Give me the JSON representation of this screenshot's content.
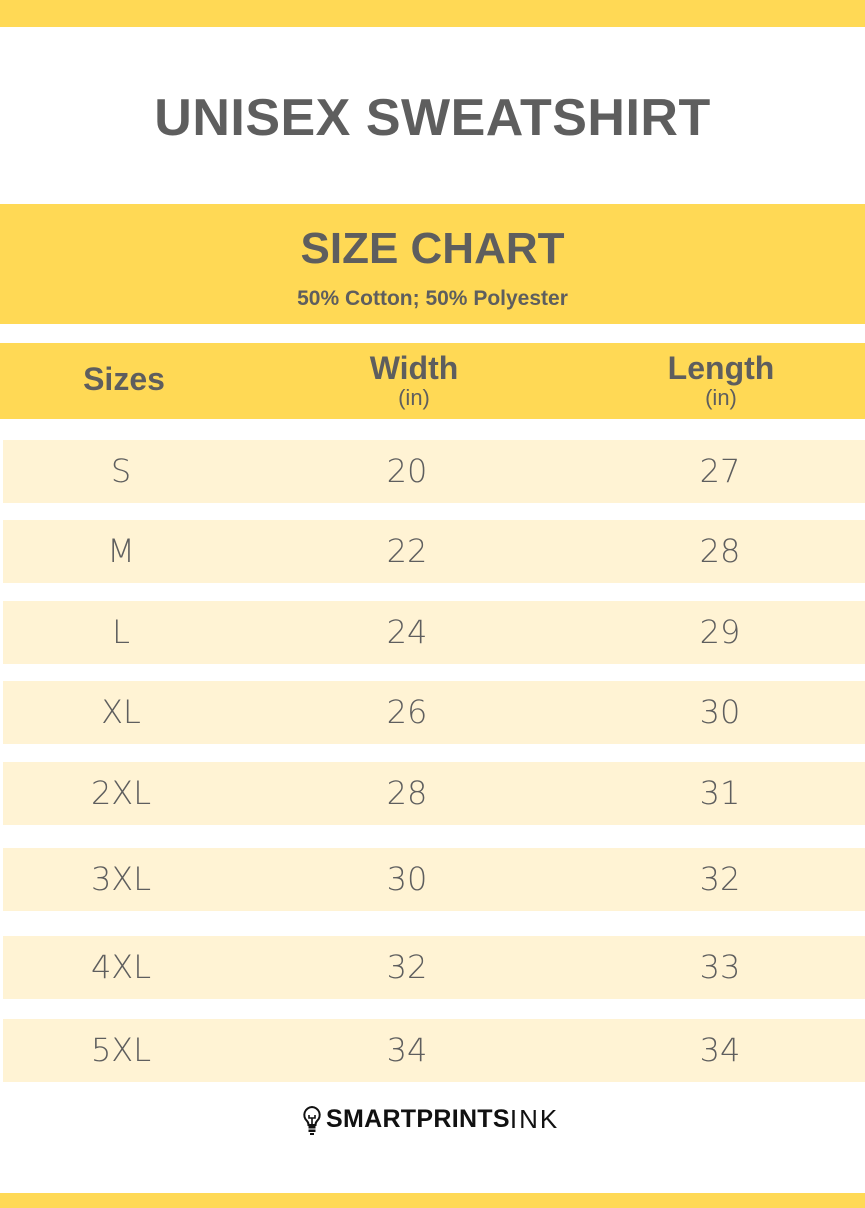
{
  "title": "UNISEX SWEATSHIRT",
  "chart_title": "SIZE CHART",
  "subtitle": "50% Cotton; 50% Polyester",
  "colors": {
    "accent": "#FFD955",
    "row": "#FFF3D4",
    "text": "#5E5E5E"
  },
  "headers": {
    "sizes": "Sizes",
    "width": "Width",
    "width_unit": "(in)",
    "length": "Length",
    "length_unit": "(in)"
  },
  "rows": [
    {
      "size": "S",
      "width": "20",
      "length": "27"
    },
    {
      "size": "M",
      "width": "22",
      "length": "28"
    },
    {
      "size": "L",
      "width": "24",
      "length": "29"
    },
    {
      "size": "XL",
      "width": "26",
      "length": "30"
    },
    {
      "size": "2XL",
      "width": "28",
      "length": "31"
    },
    {
      "size": "3XL",
      "width": "30",
      "length": "32"
    },
    {
      "size": "4XL",
      "width": "32",
      "length": "33"
    },
    {
      "size": "5XL",
      "width": "34",
      "length": "34"
    }
  ],
  "logo": {
    "bold": "SMARTPRINTS",
    "light": "INK",
    "icon": "lightbulb-icon"
  }
}
